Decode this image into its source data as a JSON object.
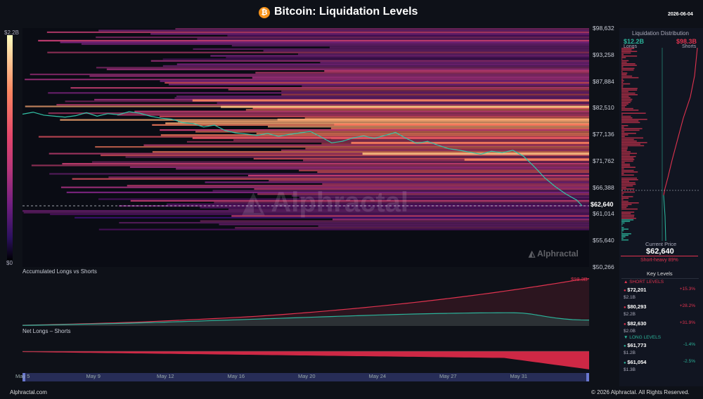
{
  "header": {
    "title": "Bitcoin: Liquidation Levels",
    "logo_glyph": "₿",
    "date": "2026-06-04"
  },
  "colorbar": {
    "max_label": "$2.2B",
    "min_label": "$0"
  },
  "watermark": {
    "main": "Alphractal",
    "small": "Alphractal"
  },
  "chart_data": [
    {
      "type": "heatmap",
      "title": "",
      "y_axis_ticks": [
        "$98,632",
        "$93,258",
        "$87,884",
        "$82,510",
        "$77,136",
        "$71,762",
        "$66,388",
        "$61,014",
        "$55,640",
        "$50,266"
      ],
      "ylim": [
        50266,
        98632
      ],
      "current_price_label": "$62,640",
      "current_price": 62640,
      "x_ticks": [
        "May 5",
        "May 9",
        "May 12",
        "May 16",
        "May 20",
        "May 24",
        "May 27",
        "May 31"
      ],
      "price_series": [
        [
          0,
          81200
        ],
        [
          2,
          81600
        ],
        [
          4,
          81000
        ],
        [
          6,
          80800
        ],
        [
          8,
          80600
        ],
        [
          10,
          80900
        ],
        [
          12,
          81500
        ],
        [
          14,
          80800
        ],
        [
          16,
          81300
        ],
        [
          18,
          81100
        ],
        [
          20,
          81700
        ],
        [
          22,
          81400
        ],
        [
          24,
          80800
        ],
        [
          26,
          80400
        ],
        [
          28,
          80200
        ],
        [
          30,
          79500
        ],
        [
          32,
          79300
        ],
        [
          34,
          78600
        ],
        [
          36,
          79000
        ],
        [
          38,
          77900
        ],
        [
          40,
          77400
        ],
        [
          42,
          77200
        ],
        [
          44,
          76900
        ],
        [
          46,
          77300
        ],
        [
          48,
          76700
        ],
        [
          50,
          77100
        ],
        [
          52,
          77400
        ],
        [
          54,
          77700
        ],
        [
          56,
          76600
        ],
        [
          58,
          75400
        ],
        [
          60,
          75700
        ],
        [
          62,
          76400
        ],
        [
          64,
          76800
        ],
        [
          66,
          76300
        ],
        [
          68,
          76900
        ],
        [
          70,
          77500
        ],
        [
          72,
          76300
        ],
        [
          74,
          75300
        ],
        [
          76,
          75700
        ],
        [
          78,
          74900
        ],
        [
          80,
          74200
        ],
        [
          82,
          73900
        ],
        [
          84,
          73500
        ],
        [
          86,
          73100
        ],
        [
          88,
          73700
        ],
        [
          90,
          73400
        ],
        [
          92,
          73900
        ],
        [
          94,
          72700
        ],
        [
          96,
          70600
        ],
        [
          98,
          68300
        ],
        [
          100,
          66500
        ],
        [
          102,
          65000
        ],
        [
          104,
          63800
        ],
        [
          105,
          62640
        ]
      ],
      "bands_description_source": "liquidation density per price level",
      "note_color_scale": "magma"
    },
    {
      "type": "area",
      "title": "Accumulated Longs vs Shorts",
      "end_label": "$98.3B",
      "series": [
        {
          "color": "#e0334f",
          "values": [
            1.5,
            1.8,
            2.2,
            2.6,
            3.1,
            3.5,
            3.9,
            4.4,
            4.8,
            5.3,
            5.8,
            6.2,
            6.9,
            7.5,
            8.1,
            8.8,
            9.6,
            10.4,
            11.2,
            12.0,
            12.8,
            13.6,
            14.4,
            15.3,
            16.2,
            17.1,
            18.0,
            19.0,
            20.0,
            21.2,
            22.4,
            23.6,
            24.9,
            26.2,
            27.6,
            29.0,
            30.4,
            31.9,
            33.4,
            35.0,
            36.6,
            38.2,
            39.9,
            41.6,
            43.4,
            45.2,
            47.0,
            48.9,
            50.8,
            52.8,
            54.8,
            56.9,
            59.0,
            61.2,
            63.4,
            65.7,
            68.0,
            70.4,
            72.8,
            75.3,
            77.8,
            80.4,
            83.0,
            85.7,
            88.4,
            91.2,
            94.0,
            96.8,
            98.3
          ]
        },
        {
          "color": "#2bb39a",
          "values": [
            1.2,
            1.5,
            1.8,
            2.1,
            2.5,
            2.9,
            3.2,
            3.6,
            3.9,
            4.3,
            4.7,
            5.0,
            5.5,
            5.9,
            6.4,
            6.9,
            7.4,
            7.9,
            8.5,
            9.0,
            9.6,
            10.1,
            10.7,
            11.3,
            11.9,
            12.4,
            13.0,
            13.6,
            14.2,
            14.8,
            15.4,
            16.0,
            16.6,
            17.2,
            17.8,
            18.4,
            19.0,
            19.6,
            20.2,
            20.7,
            21.3,
            21.8,
            22.4,
            22.9,
            23.4,
            23.9,
            24.4,
            24.8,
            25.2,
            25.6,
            25.9,
            26.2,
            26.5,
            26.8,
            27.0,
            27.2,
            27.3,
            27.4,
            27.5,
            27.4,
            26.8,
            24.9,
            22.0,
            19.1,
            16.5,
            14.6,
            13.2,
            12.5,
            12.2
          ]
        }
      ]
    },
    {
      "type": "bar",
      "title": "Net Longs – Shorts",
      "values_shape": "increasingly negative over time"
    }
  ],
  "side_panel": {
    "title": "Liquidation Distribution",
    "longs_value": "$12.2B",
    "longs_label": "Longs",
    "shorts_value": "$98.3B",
    "shorts_label": "Shorts",
    "current_price_title": "Current Price",
    "current_price_value": "$62,640",
    "bias_text": "Short-heavy 89%",
    "key_levels_title": "Key Levels",
    "short_levels_title": "▲ SHORT LEVELS",
    "long_levels_title": "▼ LONG LEVELS",
    "short_levels": [
      {
        "price": "$72,201",
        "pct": "+15.3%",
        "size": "$2.1B"
      },
      {
        "price": "$80,293",
        "pct": "+28.2%",
        "size": "$2.2B"
      },
      {
        "price": "$82,630",
        "pct": "+31.9%",
        "size": "$2.0B"
      }
    ],
    "long_levels": [
      {
        "price": "$61,773",
        "pct": "-1.4%",
        "size": "$1.2B"
      },
      {
        "price": "$61,054",
        "pct": "-2.5%",
        "size": "$1.3B"
      }
    ]
  },
  "footer": {
    "left": "Alphractal.com",
    "right": "© 2026 Alphractal. All Rights Reserved."
  },
  "colors": {
    "background": "#0e1118",
    "short": "#e0334f",
    "long": "#2bb39a",
    "bitcoin": "#f7931a"
  }
}
